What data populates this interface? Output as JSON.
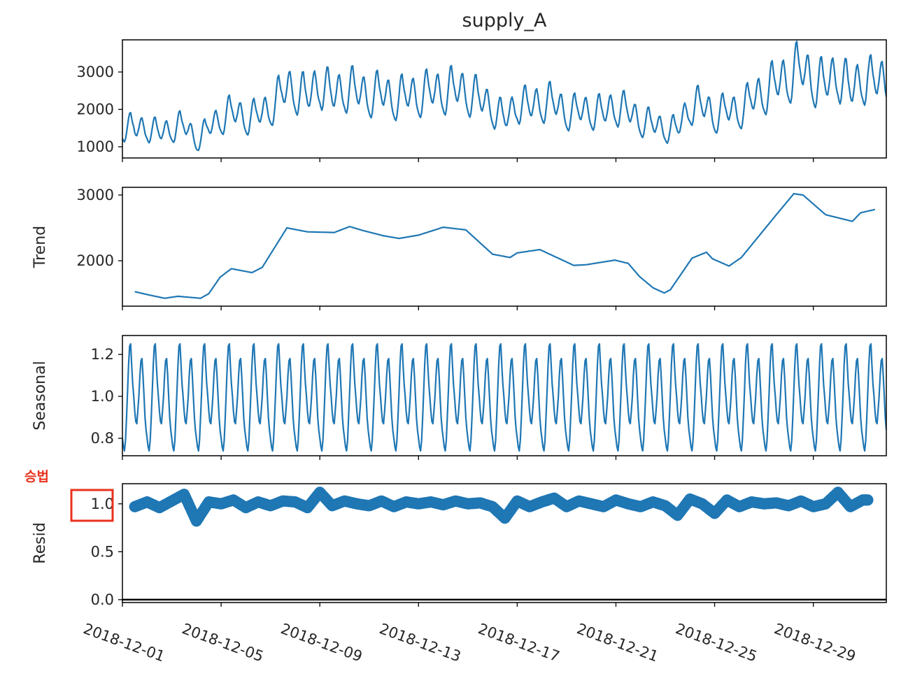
{
  "chart_data": {
    "type": "line",
    "title": "supply_A",
    "model_annotation": "승법",
    "annotation_color": "#e8321e",
    "line_color": "#1f77b4",
    "grid": false,
    "x_range": [
      "2018-12-01T00:00",
      "2018-12-31T23:00"
    ],
    "x_step": "1 hour",
    "x_ticks": [
      "2018-12-01",
      "2018-12-05",
      "2018-12-09",
      "2018-12-13",
      "2018-12-17",
      "2018-12-21",
      "2018-12-25",
      "2018-12-29"
    ],
    "panels": [
      {
        "key": "observed",
        "ylabel": "",
        "ylim": [
          700,
          3860
        ],
        "yticks": [
          "1000",
          "2000",
          "3000"
        ]
      },
      {
        "key": "trend",
        "ylabel": "Trend",
        "ylim": [
          1310,
          3117
        ],
        "yticks": [
          "2000",
          "3000"
        ]
      },
      {
        "key": "seasonal",
        "ylabel": "Seasonal",
        "ylim": [
          0.717,
          1.29
        ],
        "yticks": [
          "0.8",
          "1.0",
          "1.2"
        ]
      },
      {
        "key": "resid",
        "ylabel": "Resid",
        "ylim": [
          -0.03,
          1.21
        ],
        "yticks": [
          "0.0",
          "0.5",
          "1.0"
        ],
        "style": "markers",
        "hline": 0,
        "highlighted_tick": "1.0"
      }
    ],
    "trend": [
      [
        "2018-12-01T12:00",
        1530
      ],
      [
        "2018-12-02T02:00",
        1480
      ],
      [
        "2018-12-02T17:00",
        1430
      ],
      [
        "2018-12-03T06:00",
        1460
      ],
      [
        "2018-12-04T04:00",
        1430
      ],
      [
        "2018-12-04T12:00",
        1500
      ],
      [
        "2018-12-04T23:00",
        1750
      ],
      [
        "2018-12-05T10:00",
        1880
      ],
      [
        "2018-12-06T06:00",
        1820
      ],
      [
        "2018-12-06T16:00",
        1900
      ],
      [
        "2018-12-07T16:00",
        2500
      ],
      [
        "2018-12-08T12:00",
        2440
      ],
      [
        "2018-12-09T14:00",
        2430
      ],
      [
        "2018-12-10T05:00",
        2520
      ],
      [
        "2018-12-10T18:00",
        2460
      ],
      [
        "2018-12-11T14:00",
        2380
      ],
      [
        "2018-12-12T05:00",
        2340
      ],
      [
        "2018-12-13T00:00",
        2390
      ],
      [
        "2018-12-14T00:00",
        2510
      ],
      [
        "2018-12-14T22:00",
        2470
      ],
      [
        "2018-12-16T00:00",
        2100
      ],
      [
        "2018-12-16T17:00",
        2050
      ],
      [
        "2018-12-17T00:00",
        2120
      ],
      [
        "2018-12-17T22:00",
        2170
      ],
      [
        "2018-12-19T07:00",
        1930
      ],
      [
        "2018-12-19T19:00",
        1940
      ],
      [
        "2018-12-20T23:00",
        2010
      ],
      [
        "2018-12-21T12:00",
        1960
      ],
      [
        "2018-12-21T23:00",
        1760
      ],
      [
        "2018-12-22T12:00",
        1590
      ],
      [
        "2018-12-22T23:00",
        1510
      ],
      [
        "2018-12-23T05:00",
        1560
      ],
      [
        "2018-12-24T02:00",
        2040
      ],
      [
        "2018-12-24T16:00",
        2130
      ],
      [
        "2018-12-24T22:00",
        2030
      ],
      [
        "2018-12-25T14:00",
        1920
      ],
      [
        "2018-12-26T02:00",
        2050
      ],
      [
        "2018-12-27T12:00",
        2700
      ],
      [
        "2018-12-28T05:00",
        3020
      ],
      [
        "2018-12-28T14:00",
        3000
      ],
      [
        "2018-12-29T12:00",
        2700
      ],
      [
        "2018-12-30T14:00",
        2600
      ],
      [
        "2018-12-30T22:00",
        2730
      ],
      [
        "2018-12-31T12:00",
        2780
      ]
    ],
    "seasonal_daily_by_hour": [
      0.8,
      0.76,
      0.74,
      0.79,
      0.9,
      1.02,
      1.15,
      1.24,
      1.25,
      1.15,
      1.06,
      1.0,
      0.93,
      0.88,
      0.87,
      0.93,
      1.0,
      1.1,
      1.17,
      1.18,
      1.1,
      1.0,
      0.9,
      0.84
    ],
    "resid_every_12h": [
      null,
      0.97,
      1.02,
      0.96,
      1.03,
      1.1,
      0.82,
      1.02,
      1.0,
      1.04,
      0.96,
      1.02,
      0.98,
      1.03,
      1.02,
      0.96,
      1.12,
      0.98,
      1.03,
      1.0,
      0.98,
      1.03,
      0.97,
      1.02,
      1.0,
      1.02,
      0.99,
      1.03,
      1.0,
      1.01,
      0.97,
      0.85,
      1.03,
      0.97,
      1.02,
      1.06,
      0.97,
      1.03,
      1.0,
      0.97,
      1.04,
      1.0,
      0.97,
      1.02,
      0.98,
      0.88,
      1.05,
      1.0,
      0.9,
      1.04,
      0.97,
      1.02,
      1.0,
      1.01,
      0.98,
      1.03,
      0.97,
      1.0,
      1.12,
      0.97,
      1.04,
      null
    ]
  }
}
